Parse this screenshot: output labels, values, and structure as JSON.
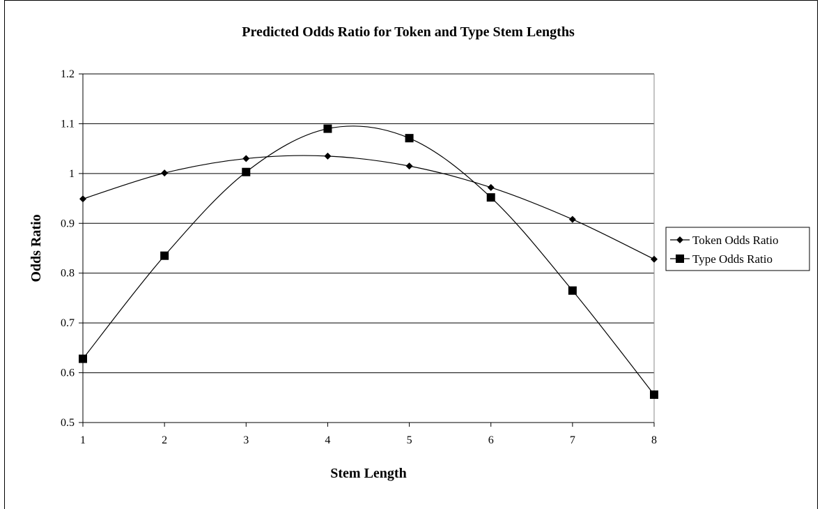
{
  "chart_data": {
    "type": "line",
    "title": "Predicted Odds Ratio for Token and Type Stem Lengths",
    "xlabel": "Stem Length",
    "ylabel": "Odds Ratio",
    "x": [
      1,
      2,
      3,
      4,
      5,
      6,
      7,
      8
    ],
    "ylim": [
      0.5,
      1.2
    ],
    "yticks": [
      "0.5",
      "0.6",
      "0.7",
      "0.8",
      "0.9",
      "1",
      "1.1",
      "1.2"
    ],
    "xticks": [
      "1",
      "2",
      "3",
      "4",
      "5",
      "6",
      "7",
      "8"
    ],
    "grid": "horizontal major gridlines",
    "smoothed": true,
    "legend_position": "right",
    "series": [
      {
        "name": "Token Odds Ratio",
        "marker": "diamond",
        "values": [
          0.949,
          1.001,
          1.03,
          1.035,
          1.015,
          0.972,
          0.908,
          0.828
        ]
      },
      {
        "name": "Type Odds Ratio",
        "marker": "square",
        "values": [
          0.628,
          0.835,
          1.003,
          1.09,
          1.071,
          0.952,
          0.765,
          0.556
        ]
      }
    ],
    "colors": {
      "line": "#000000",
      "grid": "#000000",
      "background": "#ffffff"
    }
  }
}
